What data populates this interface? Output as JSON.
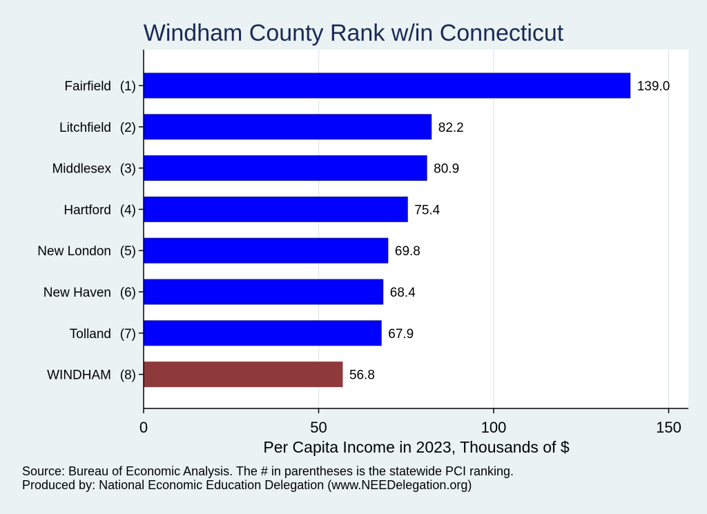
{
  "chart_data": {
    "type": "bar",
    "orientation": "horizontal",
    "title": "Windham County Rank w/in Connecticut",
    "xlabel": "Per Capita Income in 2023, Thousands of $",
    "categories": [
      "Fairfield",
      "Litchfield",
      "Middlesex",
      "Hartford",
      "New London",
      "New Haven",
      "Tolland",
      "WINDHAM"
    ],
    "ranks": [
      "(1)",
      "(2)",
      "(3)",
      "(4)",
      "(5)",
      "(6)",
      "(7)",
      "(8)"
    ],
    "values": [
      139.0,
      82.2,
      80.9,
      75.4,
      69.8,
      68.4,
      67.9,
      56.8
    ],
    "value_labels": [
      "139.0",
      "82.2",
      "80.9",
      "75.4",
      "69.8",
      "68.4",
      "67.9",
      "56.8"
    ],
    "xlim": [
      0,
      155
    ],
    "xticks": [
      0,
      50,
      100,
      150
    ],
    "grid": true,
    "colors": {
      "bar": "#0000ff",
      "highlight": "#8e3a3d",
      "background": "#eaf2f3",
      "plot_background": "#ffffff",
      "title": "#1a2a57"
    },
    "highlight_index": 7
  },
  "footer": {
    "source": "Source: Bureau of Economic Analysis. The # in parentheses is the statewide PCI ranking.",
    "produced_by": "Produced by: National Economic Education Delegation (www.NEEDelegation.org)"
  }
}
